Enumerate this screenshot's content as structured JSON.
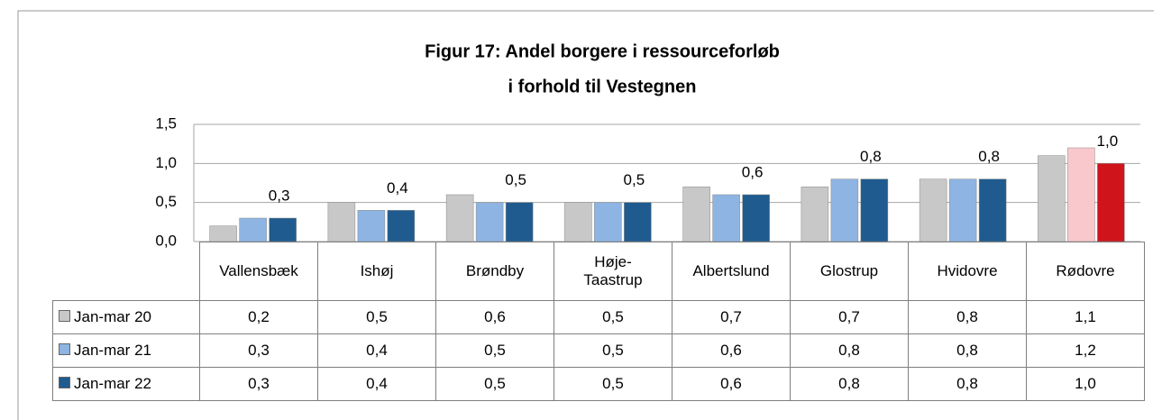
{
  "chart_data": {
    "type": "bar",
    "title": [
      "Figur 17: Andel borgere i ressourceforløb",
      "i forhold til Vestegnen"
    ],
    "categories": [
      "Vallensbæk",
      "Ishøj",
      "Brøndby",
      "Høje-Taastrup",
      "Albertslund",
      "Glostrup",
      "Hvidovre",
      "Rødovre"
    ],
    "series": [
      {
        "name": "Jan-mar 20",
        "color": "#c8c8c8",
        "colors": [
          "#c8c8c8",
          "#c8c8c8",
          "#c8c8c8",
          "#c8c8c8",
          "#c8c8c8",
          "#c8c8c8",
          "#c8c8c8",
          "#c8c8c8"
        ],
        "show_labels": false,
        "values": [
          0.2,
          0.5,
          0.6,
          0.5,
          0.7,
          0.7,
          0.8,
          1.1
        ],
        "value_labels": [
          "0,2",
          "0,5",
          "0,6",
          "0,5",
          "0,7",
          "0,7",
          "0,8",
          "1,1"
        ]
      },
      {
        "name": "Jan-mar 21",
        "color": "#8db4e2",
        "colors": [
          "#8db4e2",
          "#8db4e2",
          "#8db4e2",
          "#8db4e2",
          "#8db4e2",
          "#8db4e2",
          "#8db4e2",
          "#f8c8cc"
        ],
        "show_labels": false,
        "values": [
          0.3,
          0.4,
          0.5,
          0.5,
          0.6,
          0.8,
          0.8,
          1.2
        ],
        "value_labels": [
          "0,3",
          "0,4",
          "0,5",
          "0,5",
          "0,6",
          "0,8",
          "0,8",
          "1,2"
        ]
      },
      {
        "name": "Jan-mar 22",
        "color": "#1f5b8f",
        "colors": [
          "#1f5b8f",
          "#1f5b8f",
          "#1f5b8f",
          "#1f5b8f",
          "#1f5b8f",
          "#1f5b8f",
          "#1f5b8f",
          "#d0141c"
        ],
        "show_labels": true,
        "values": [
          0.3,
          0.4,
          0.5,
          0.5,
          0.6,
          0.8,
          0.8,
          1.0
        ],
        "value_labels": [
          "0,3",
          "0,4",
          "0,5",
          "0,5",
          "0,6",
          "0,8",
          "0,8",
          "1,0"
        ]
      }
    ],
    "ylim": [
      0,
      1.5
    ],
    "yticks": [
      {
        "value": 0,
        "label": "0,0"
      },
      {
        "value": 0.5,
        "label": "0,5"
      },
      {
        "value": 1,
        "label": "1,0"
      },
      {
        "value": 1.5,
        "label": "1,5"
      }
    ],
    "grid": true
  }
}
